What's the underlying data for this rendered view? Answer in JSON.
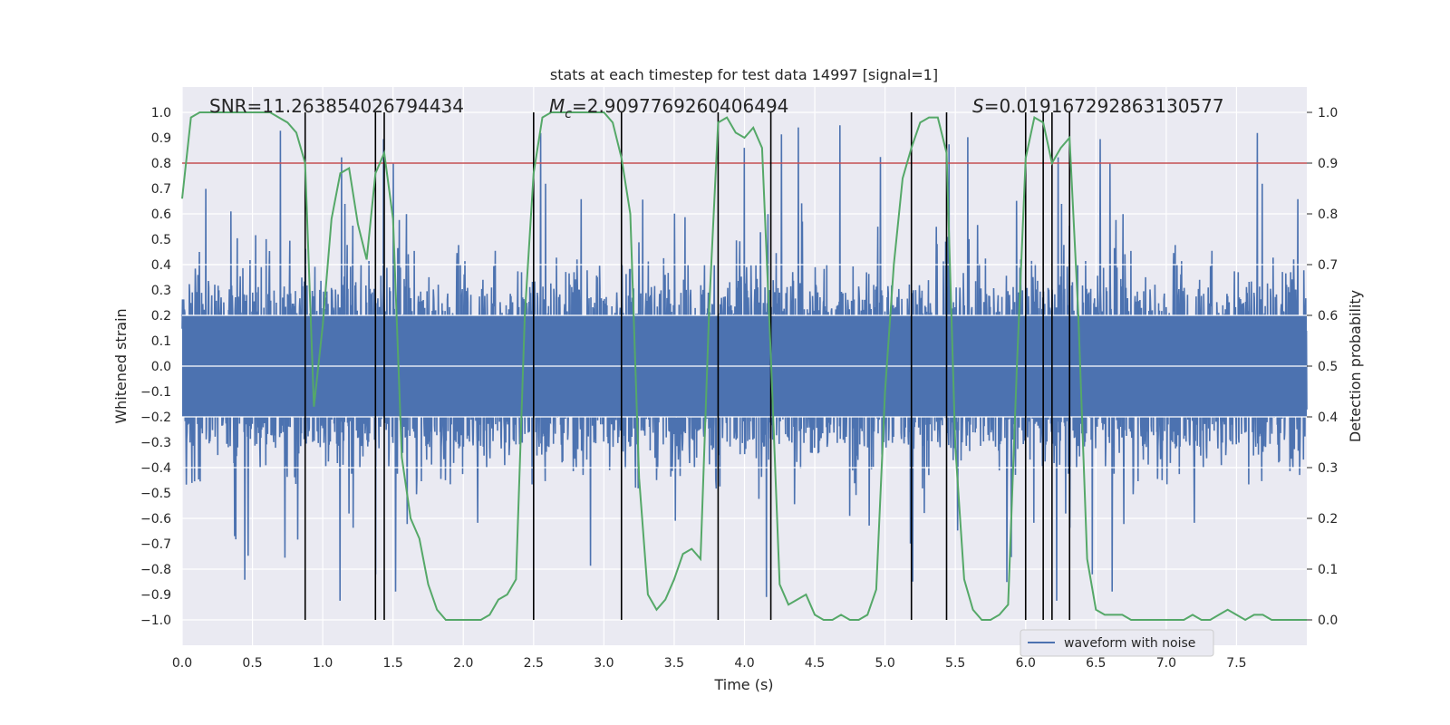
{
  "chart_data": {
    "type": "line",
    "title": "stats at each timestep for test data 14997 [signal=1]",
    "xlabel": "Time (s)",
    "ylabel": "Whitened strain",
    "ylabel_right": "Detection probability",
    "xlim": [
      0,
      8
    ],
    "ylim": [
      -1.1,
      1.1
    ],
    "ylim_right": [
      -0.05,
      1.05
    ],
    "x_ticks": [
      0.0,
      0.5,
      1.0,
      1.5,
      2.0,
      2.5,
      3.0,
      3.5,
      4.0,
      4.5,
      5.0,
      5.5,
      6.0,
      6.5,
      7.0,
      7.5
    ],
    "x_tick_labels": [
      "0.0",
      "0.5",
      "1.0",
      "1.5",
      "2.0",
      "2.5",
      "3.0",
      "3.5",
      "4.0",
      "4.5",
      "5.0",
      "5.5",
      "6.0",
      "6.5",
      "7.0",
      "7.5"
    ],
    "y_ticks": [
      -1.0,
      -0.9,
      -0.8,
      -0.7,
      -0.6,
      -0.5,
      -0.4,
      -0.3,
      -0.2,
      -0.1,
      0.0,
      0.1,
      0.2,
      0.3,
      0.4,
      0.5,
      0.6,
      0.7,
      0.8,
      0.9,
      1.0
    ],
    "y_tick_labels": [
      "−1.0",
      "−0.9",
      "−0.8",
      "−0.7",
      "−0.6",
      "−0.5",
      "−0.4",
      "−0.3",
      "−0.2",
      "−0.1",
      "0.0",
      "0.1",
      "0.2",
      "0.3",
      "0.4",
      "0.5",
      "0.6",
      "0.7",
      "0.8",
      "0.9",
      "1.0"
    ],
    "y_right_ticks": [
      0.0,
      0.1,
      0.2,
      0.3,
      0.4,
      0.5,
      0.6,
      0.7,
      0.8,
      0.9,
      1.0
    ],
    "y_right_tick_labels": [
      "0.0",
      "0.1",
      "0.2",
      "0.3",
      "0.4",
      "0.5",
      "0.6",
      "0.7",
      "0.8",
      "0.9",
      "1.0"
    ],
    "annotations": {
      "snr": "SNR=11.263854026794434",
      "mc_symbol": "M",
      "mc_sub": "c",
      "mc_value": "=2.9097769260406494",
      "s_symbol": "S",
      "s_value": "=0.019167292863130577"
    },
    "legend": {
      "entries": [
        "waveform with noise"
      ],
      "placement": "lower-right"
    },
    "grid": true,
    "threshold_probability": 0.9,
    "event_times": [
      0.875,
      1.375,
      1.4375,
      2.5,
      3.125,
      3.8125,
      4.1875,
      5.1875,
      5.4375,
      6.0,
      6.125,
      6.1875,
      6.3125
    ],
    "series": [
      {
        "name": "waveform with noise",
        "axis": "left",
        "style": "dense-noise",
        "typical_amplitude": 0.4,
        "max_amplitude": 0.97
      },
      {
        "axis": "right",
        "x": [
          0.0,
          0.0625,
          0.125,
          0.1875,
          0.25,
          0.3125,
          0.375,
          0.4375,
          0.5,
          0.5625,
          0.625,
          0.6875,
          0.75,
          0.8125,
          0.875,
          0.9375,
          1.0,
          1.0625,
          1.125,
          1.1875,
          1.25,
          1.3125,
          1.375,
          1.4375,
          1.5,
          1.5625,
          1.625,
          1.6875,
          1.75,
          1.8125,
          1.875,
          1.9375,
          2.0,
          2.0625,
          2.125,
          2.1875,
          2.25,
          2.3125,
          2.375,
          2.4375,
          2.5,
          2.5625,
          2.625,
          2.6875,
          2.75,
          2.8125,
          2.875,
          2.9375,
          3.0,
          3.0625,
          3.125,
          3.1875,
          3.25,
          3.3125,
          3.375,
          3.4375,
          3.5,
          3.5625,
          3.625,
          3.6875,
          3.75,
          3.8125,
          3.875,
          3.9375,
          4.0,
          4.0625,
          4.125,
          4.1875,
          4.25,
          4.3125,
          4.375,
          4.4375,
          4.5,
          4.5625,
          4.625,
          4.6875,
          4.75,
          4.8125,
          4.875,
          4.9375,
          5.0,
          5.0625,
          5.125,
          5.1875,
          5.25,
          5.3125,
          5.375,
          5.4375,
          5.5,
          5.5625,
          5.625,
          5.6875,
          5.75,
          5.8125,
          5.875,
          5.9375,
          6.0,
          6.0625,
          6.125,
          6.1875,
          6.25,
          6.3125,
          6.375,
          6.4375,
          6.5,
          6.5625,
          6.625,
          6.6875,
          6.75,
          6.8125,
          6.875,
          6.9375,
          7.0,
          7.0625,
          7.125,
          7.1875,
          7.25,
          7.3125,
          7.375,
          7.4375,
          7.5,
          7.5625,
          7.625,
          7.6875,
          7.75,
          7.8125,
          7.875,
          7.9375,
          8.0
        ],
        "values": [
          0.83,
          0.99,
          1.0,
          1.0,
          1.0,
          1.0,
          1.0,
          1.0,
          1.0,
          1.0,
          1.0,
          0.99,
          0.98,
          0.96,
          0.9,
          0.42,
          0.58,
          0.79,
          0.88,
          0.89,
          0.78,
          0.71,
          0.88,
          0.92,
          0.79,
          0.32,
          0.2,
          0.16,
          0.07,
          0.02,
          0.0,
          0.0,
          0.0,
          0.0,
          0.0,
          0.01,
          0.04,
          0.05,
          0.08,
          0.6,
          0.88,
          0.99,
          1.0,
          1.0,
          1.0,
          1.0,
          1.0,
          1.0,
          1.0,
          0.98,
          0.91,
          0.8,
          0.28,
          0.05,
          0.02,
          0.04,
          0.08,
          0.13,
          0.14,
          0.12,
          0.62,
          0.98,
          0.99,
          0.96,
          0.95,
          0.97,
          0.93,
          0.52,
          0.07,
          0.03,
          0.04,
          0.05,
          0.01,
          0.0,
          0.0,
          0.01,
          0.0,
          0.0,
          0.01,
          0.06,
          0.45,
          0.7,
          0.87,
          0.93,
          0.98,
          0.99,
          0.99,
          0.92,
          0.34,
          0.08,
          0.02,
          0.0,
          0.0,
          0.01,
          0.03,
          0.5,
          0.91,
          0.99,
          0.98,
          0.9,
          0.93,
          0.95,
          0.6,
          0.12,
          0.02,
          0.01,
          0.01,
          0.01,
          0.0,
          0.0,
          0.0,
          0.0,
          0.0,
          0.0,
          0.0,
          0.01,
          0.0,
          0.0,
          0.01,
          0.02,
          0.01,
          0.0,
          0.01,
          0.01,
          0.0,
          0.0,
          0.0,
          0.0,
          0.0
        ]
      }
    ]
  }
}
